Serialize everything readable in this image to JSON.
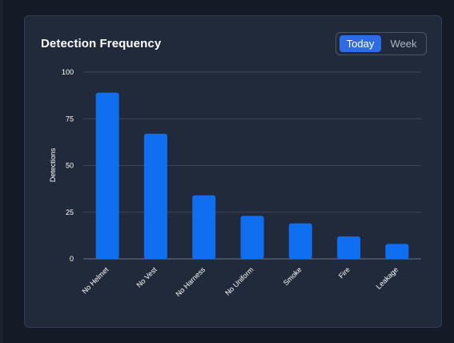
{
  "card": {
    "title": "Detection Frequency"
  },
  "toggle": {
    "options": [
      "Today",
      "Week"
    ],
    "selected": "Today"
  },
  "colors": {
    "background": "#141a26",
    "card": "#212a3a",
    "bar": "#0f6ff0",
    "toggle_active": "#2e6be6",
    "grid": "#3a4658"
  },
  "chart_data": {
    "type": "bar",
    "categories": [
      "No Helmet",
      "No Vest",
      "No Harness",
      "No Uniform",
      "Smoke",
      "Fire",
      "Leakage"
    ],
    "values": [
      89,
      67,
      34,
      23,
      19,
      12,
      8
    ],
    "title": "",
    "xlabel": "",
    "ylabel": "Detections",
    "ylim": [
      0,
      100
    ],
    "yticks": [
      0,
      25,
      50,
      75,
      100
    ],
    "grid": true
  }
}
